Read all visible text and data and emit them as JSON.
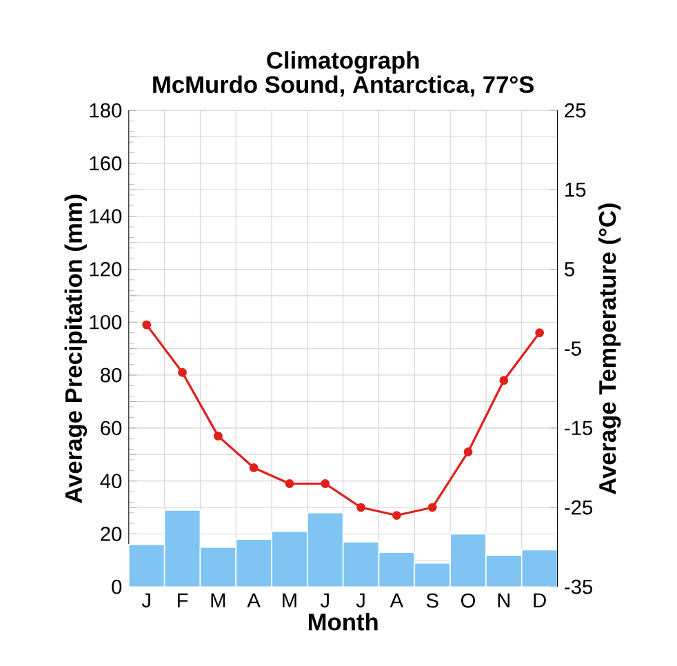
{
  "chart_data": {
    "type": "bar",
    "title": "Climatograph",
    "subtitle": "McMurdo Sound, Antarctica, 77°S",
    "xlabel": "Month",
    "ylabel": "Average Precipitation (mm)",
    "y2label": "Average Temperature (°C)",
    "categories": [
      "J",
      "F",
      "M",
      "A",
      "M",
      "J",
      "J",
      "A",
      "S",
      "O",
      "N",
      "D"
    ],
    "series": [
      {
        "color": "#80c4f4",
        "values": [
          16,
          29,
          15,
          18,
          21,
          28,
          17,
          13,
          9,
          20,
          12,
          14
        ]
      },
      {
        "type": "line",
        "axis": "y2",
        "color": "#e0201b",
        "marker": "circle",
        "values": [
          -2,
          -8,
          -16,
          -20,
          -22,
          -22,
          -25,
          -26,
          -25,
          -18,
          -9,
          -3
        ]
      }
    ],
    "ylim": [
      0,
      180
    ],
    "yticks": [
      0,
      20,
      40,
      60,
      80,
      100,
      120,
      140,
      160,
      180
    ],
    "y2lim": [
      -35,
      25
    ],
    "y2ticks": [
      25,
      15,
      5,
      -5,
      -15,
      -25,
      -35
    ],
    "grid": true
  }
}
